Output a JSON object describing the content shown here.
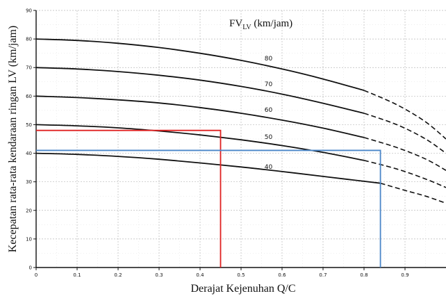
{
  "chart_data": {
    "type": "line",
    "title": "",
    "xlabel": "Derajat Kejenuhan Q/C",
    "ylabel": "Kecepatan rata-rata kendaraan ringan LV (km/jam)",
    "legend_title_main": "FV",
    "legend_title_sub": "LV",
    "legend_title_unit": " (km/jam)",
    "xlim": [
      0,
      1.0
    ],
    "ylim": [
      0,
      90
    ],
    "x_ticks": [
      "0",
      "0.1",
      "0.2",
      "0.3",
      "0.4",
      "0.5",
      "0.6",
      "0.7",
      "0.8",
      "0.9"
    ],
    "x_tick_values": [
      0,
      0.1,
      0.2,
      0.3,
      0.4,
      0.5,
      0.6,
      0.7,
      0.8,
      0.9
    ],
    "y_ticks": [
      "0",
      "10",
      "20",
      "30",
      "40",
      "50",
      "60",
      "70",
      "80",
      "90"
    ],
    "y_tick_values": [
      0,
      10,
      20,
      30,
      40,
      50,
      60,
      70,
      80,
      90
    ],
    "grid": true,
    "series": [
      {
        "name": "80",
        "solid": [
          [
            0,
            80
          ],
          [
            0.1,
            79.5
          ],
          [
            0.2,
            78.5
          ],
          [
            0.3,
            77
          ],
          [
            0.4,
            75
          ],
          [
            0.5,
            72.5
          ],
          [
            0.6,
            69.5
          ],
          [
            0.7,
            66
          ],
          [
            0.8,
            62
          ]
        ],
        "dashed": [
          [
            0.8,
            62
          ],
          [
            0.88,
            57
          ],
          [
            0.95,
            51
          ],
          [
            1.0,
            45
          ]
        ]
      },
      {
        "name": "70",
        "solid": [
          [
            0,
            70
          ],
          [
            0.1,
            69.5
          ],
          [
            0.2,
            68.6
          ],
          [
            0.3,
            67.3
          ],
          [
            0.4,
            65.6
          ],
          [
            0.5,
            63.4
          ],
          [
            0.6,
            60.7
          ],
          [
            0.7,
            57.5
          ],
          [
            0.8,
            54
          ]
        ],
        "dashed": [
          [
            0.8,
            54
          ],
          [
            0.88,
            50
          ],
          [
            0.95,
            45
          ],
          [
            1.0,
            40
          ]
        ]
      },
      {
        "name": "60",
        "solid": [
          [
            0,
            60
          ],
          [
            0.1,
            59.5
          ],
          [
            0.2,
            58.7
          ],
          [
            0.3,
            57.6
          ],
          [
            0.4,
            56
          ],
          [
            0.5,
            54
          ],
          [
            0.6,
            51.6
          ],
          [
            0.7,
            48.8
          ],
          [
            0.8,
            45.5
          ]
        ],
        "dashed": [
          [
            0.8,
            45.5
          ],
          [
            0.88,
            42
          ],
          [
            0.95,
            38
          ],
          [
            1.0,
            34
          ]
        ]
      },
      {
        "name": "50",
        "solid": [
          [
            0,
            50
          ],
          [
            0.1,
            49.6
          ],
          [
            0.2,
            48.9
          ],
          [
            0.3,
            47.8
          ],
          [
            0.4,
            46.4
          ],
          [
            0.5,
            44.7
          ],
          [
            0.6,
            42.7
          ],
          [
            0.7,
            40.3
          ],
          [
            0.8,
            37.5
          ]
        ],
        "dashed": [
          [
            0.8,
            37.5
          ],
          [
            0.88,
            34.5
          ],
          [
            0.95,
            31
          ],
          [
            1.0,
            28
          ]
        ]
      },
      {
        "name": "40",
        "solid": [
          [
            0,
            40
          ],
          [
            0.1,
            39.6
          ],
          [
            0.2,
            38.9
          ],
          [
            0.3,
            37.9
          ],
          [
            0.4,
            36.6
          ],
          [
            0.5,
            35.2
          ],
          [
            0.6,
            33.6
          ],
          [
            0.7,
            31.9
          ],
          [
            0.84,
            29.5
          ]
        ],
        "dashed": [
          [
            0.84,
            29.5
          ],
          [
            0.9,
            27
          ],
          [
            0.95,
            25
          ],
          [
            1.0,
            22.5
          ]
        ]
      }
    ],
    "curve_label_points": [
      {
        "name": "80",
        "x": 0.55,
        "y": 72.5
      },
      {
        "name": "70",
        "x": 0.55,
        "y": 63.5
      },
      {
        "name": "60",
        "x": 0.55,
        "y": 54.5
      },
      {
        "name": "50",
        "x": 0.55,
        "y": 45
      },
      {
        "name": "40",
        "x": 0.55,
        "y": 34.5
      }
    ],
    "annotations": [
      {
        "name": "red",
        "color": "#e02020",
        "x": 0.45,
        "y": 48
      },
      {
        "name": "blue",
        "color": "#4a86c8",
        "x": 0.84,
        "y": 41
      }
    ]
  }
}
